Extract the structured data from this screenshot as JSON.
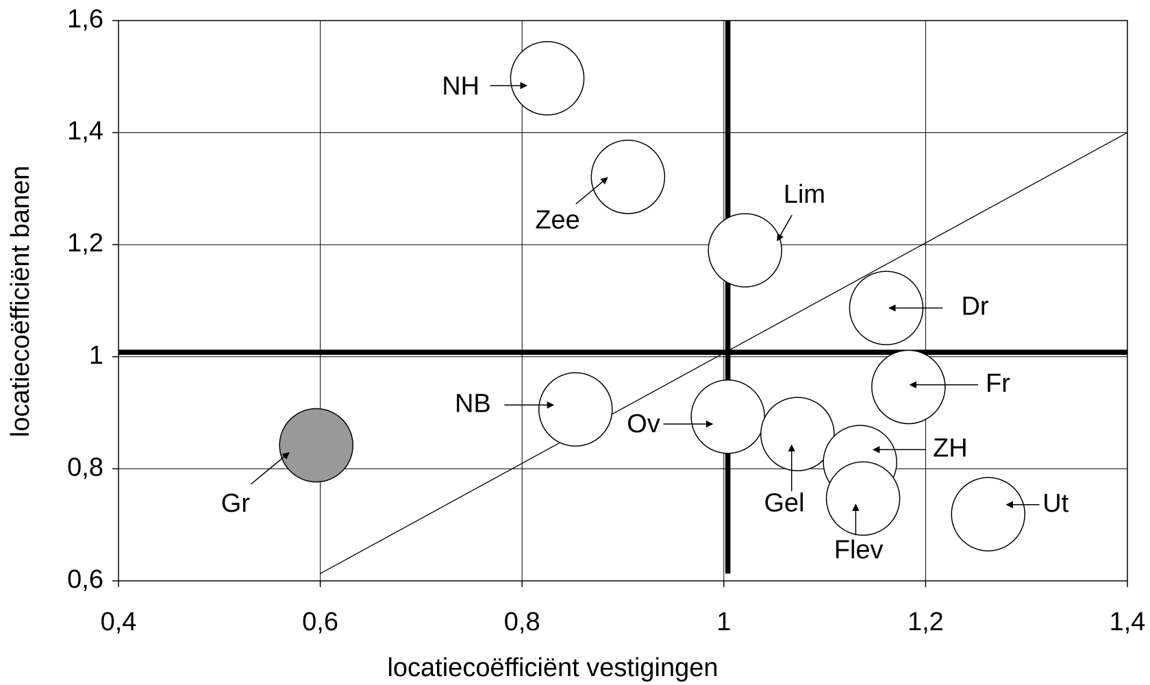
{
  "chart_data": {
    "type": "scatter",
    "x_label": "locatiecoëfficiënt vestigingen",
    "y_label": "locatiecoëfficiënt banen",
    "labels": [
      "NH",
      "Zee",
      "Lim",
      "Dr",
      "Fr",
      "NB",
      "Ov",
      "Gel",
      "ZH",
      "Flev",
      "Ut",
      "Gr"
    ],
    "x": [
      0.825,
      0.905,
      1.021,
      1.161,
      1.183,
      0.853,
      1.004,
      1.073,
      1.135,
      1.138,
      1.262,
      0.596
    ],
    "values": [
      1.497,
      1.321,
      1.19,
      1.087,
      0.946,
      0.906,
      0.893,
      0.862,
      0.812,
      0.747,
      0.719,
      0.842
    ],
    "point_fills": [
      "#ffffff",
      "#ffffff",
      "#ffffff",
      "#ffffff",
      "#ffffff",
      "#ffffff",
      "#ffffff",
      "#ffffff",
      "#ffffff",
      "#ffffff",
      "#ffffff",
      "#999999"
    ],
    "reference_lines": [
      {
        "x": [
          0.4,
          1.4
        ],
        "y": [
          1.008,
          1.008
        ]
      },
      {
        "x": [
          1.004,
          1.004
        ],
        "y": [
          0.613,
          1.6
        ]
      },
      {
        "x": [
          0.6,
          1.4
        ],
        "y": [
          0.613,
          1.4
        ]
      }
    ],
    "xlim": [
      0.4,
      1.4
    ],
    "xticks": [
      {
        "value": 0.4,
        "label": "0,4"
      },
      {
        "value": 0.6,
        "label": "0,6"
      },
      {
        "value": 0.8,
        "label": "0,8"
      },
      1,
      {
        "value": 1.2,
        "label": "1,2"
      },
      {
        "value": 1.4,
        "label": "1,4"
      }
    ],
    "ylim": [
      0.6,
      1.6
    ],
    "yticks": [
      {
        "value": 0.6,
        "label": "0,6"
      },
      {
        "value": 0.8,
        "label": "0,8"
      },
      1,
      {
        "value": 1.2,
        "label": "1,2"
      },
      {
        "value": 1.4,
        "label": "1,4"
      },
      {
        "value": 1.6,
        "label": "1,6"
      }
    ],
    "grid": true
  }
}
